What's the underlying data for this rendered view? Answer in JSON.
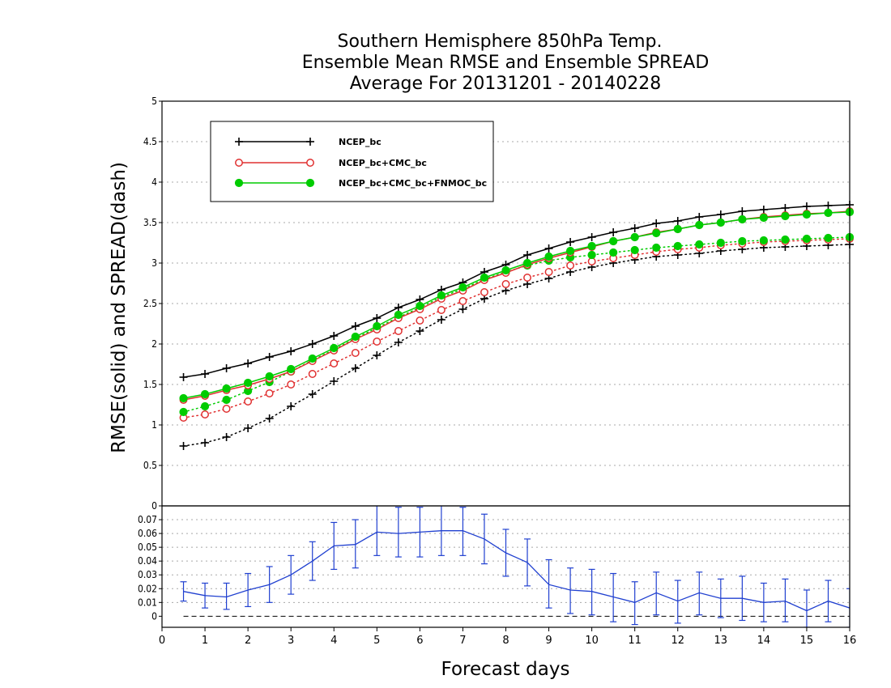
{
  "chart_data": [
    {
      "type": "line",
      "title_lines": [
        "Southern Hemisphere 850hPa Temp.",
        "Ensemble Mean RMSE and Ensemble SPREAD",
        "Average For 20131201 - 20140228"
      ],
      "ylabel": "RMSE(solid) and SPREAD(dash)",
      "ylim": [
        0,
        5
      ],
      "yticks": [
        0,
        0.5,
        1,
        1.5,
        2,
        2.5,
        3,
        3.5,
        4,
        4.5,
        5
      ],
      "ytick_labels": [
        "0",
        "0.5",
        "1",
        "1.5",
        "2",
        "2.5",
        "3",
        "3.5",
        "4",
        "4.5",
        "5"
      ],
      "xlim": [
        0,
        16
      ],
      "grid": true,
      "legend_position": "top-left",
      "x": [
        0.5,
        1,
        1.5,
        2,
        2.5,
        3,
        3.5,
        4,
        4.5,
        5,
        5.5,
        6,
        6.5,
        7,
        7.5,
        8,
        8.5,
        9,
        9.5,
        10,
        10.5,
        11,
        11.5,
        12,
        12.5,
        13,
        13.5,
        14,
        14.5,
        15,
        15.5,
        16
      ],
      "series": [
        {
          "name": "NCEP_bc",
          "color": "#000000",
          "marker": "plus",
          "style": "solid",
          "values": [
            1.59,
            1.63,
            1.7,
            1.76,
            1.84,
            1.91,
            2.0,
            2.1,
            2.22,
            2.32,
            2.45,
            2.55,
            2.67,
            2.76,
            2.89,
            2.98,
            3.1,
            3.18,
            3.26,
            3.32,
            3.38,
            3.43,
            3.49,
            3.52,
            3.57,
            3.6,
            3.64,
            3.66,
            3.68,
            3.7,
            3.71,
            3.72
          ]
        },
        {
          "name": "NCEP_bc+CMC_bc",
          "color": "#e03030",
          "marker": "circle-open",
          "style": "solid",
          "values": [
            1.31,
            1.36,
            1.43,
            1.49,
            1.57,
            1.66,
            1.79,
            1.92,
            2.06,
            2.18,
            2.32,
            2.43,
            2.56,
            2.66,
            2.79,
            2.88,
            2.98,
            3.06,
            3.13,
            3.2,
            3.27,
            3.32,
            3.38,
            3.42,
            3.47,
            3.5,
            3.54,
            3.57,
            3.59,
            3.61,
            3.62,
            3.64
          ]
        },
        {
          "name": "NCEP_bc+CMC_bc+FNMOC_bc",
          "color": "#00cc00",
          "marker": "circle-filled",
          "style": "solid",
          "values": [
            1.33,
            1.38,
            1.45,
            1.52,
            1.6,
            1.69,
            1.82,
            1.95,
            2.09,
            2.22,
            2.36,
            2.47,
            2.6,
            2.7,
            2.82,
            2.91,
            3.0,
            3.08,
            3.15,
            3.21,
            3.27,
            3.32,
            3.37,
            3.42,
            3.47,
            3.5,
            3.54,
            3.56,
            3.58,
            3.6,
            3.62,
            3.63
          ]
        },
        {
          "name": "NCEP_bc spread",
          "color": "#000000",
          "marker": "plus",
          "style": "dotted",
          "values": [
            0.74,
            0.78,
            0.85,
            0.96,
            1.08,
            1.23,
            1.38,
            1.54,
            1.7,
            1.86,
            2.02,
            2.16,
            2.3,
            2.43,
            2.56,
            2.66,
            2.74,
            2.81,
            2.89,
            2.95,
            3.0,
            3.04,
            3.08,
            3.1,
            3.12,
            3.15,
            3.17,
            3.19,
            3.2,
            3.21,
            3.22,
            3.23
          ]
        },
        {
          "name": "NCEP_bc+CMC_bc spread",
          "color": "#e03030",
          "marker": "circle-open",
          "style": "dotted",
          "values": [
            1.09,
            1.13,
            1.2,
            1.29,
            1.39,
            1.5,
            1.63,
            1.76,
            1.89,
            2.03,
            2.16,
            2.29,
            2.42,
            2.53,
            2.64,
            2.74,
            2.82,
            2.89,
            2.97,
            3.02,
            3.06,
            3.1,
            3.14,
            3.17,
            3.19,
            3.22,
            3.24,
            3.26,
            3.27,
            3.28,
            3.29,
            3.3
          ]
        },
        {
          "name": "NCEP_bc+CMC_bc+FNMOC_bc spread",
          "color": "#00cc00",
          "marker": "circle-filled",
          "style": "dotted",
          "values": [
            1.16,
            1.23,
            1.31,
            1.42,
            1.53,
            1.66,
            1.8,
            1.93,
            2.07,
            2.2,
            2.33,
            2.45,
            2.58,
            2.68,
            2.8,
            2.89,
            2.97,
            3.03,
            3.07,
            3.1,
            3.13,
            3.16,
            3.19,
            3.21,
            3.23,
            3.25,
            3.27,
            3.28,
            3.29,
            3.3,
            3.31,
            3.32
          ]
        }
      ],
      "legend": [
        {
          "label": "NCEP_bc",
          "color": "#000000",
          "marker": "plus"
        },
        {
          "label": "NCEP_bc+CMC_bc",
          "color": "#e03030",
          "marker": "circle-open"
        },
        {
          "label": "NCEP_bc+CMC_bc+FNMOC_bc",
          "color": "#00cc00",
          "marker": "circle-filled"
        }
      ]
    },
    {
      "type": "line",
      "xlabel": "Forecast days",
      "xlim": [
        0,
        16
      ],
      "xticks": [
        0,
        1,
        2,
        3,
        4,
        5,
        6,
        7,
        8,
        9,
        10,
        11,
        12,
        13,
        14,
        15,
        16
      ],
      "xtick_labels": [
        "0",
        "1",
        "2",
        "3",
        "4",
        "5",
        "6",
        "7",
        "8",
        "9",
        "10",
        "11",
        "12",
        "13",
        "14",
        "15",
        "16"
      ],
      "ylim": [
        -0.008,
        0.08
      ],
      "yticks": [
        0,
        0.01,
        0.02,
        0.03,
        0.04,
        0.05,
        0.06,
        0.07
      ],
      "ytick_labels": [
        "0",
        "0.01",
        "0.02",
        "0.03",
        "0.04",
        "0.05",
        "0.06",
        "0.07"
      ],
      "zero_line": true,
      "x": [
        0.5,
        1,
        1.5,
        2,
        2.5,
        3,
        3.5,
        4,
        4.5,
        5,
        5.5,
        6,
        6.5,
        7,
        7.5,
        8,
        8.5,
        9,
        9.5,
        10,
        10.5,
        11,
        11.5,
        12,
        12.5,
        13,
        13.5,
        14,
        14.5,
        15,
        15.5,
        16
      ],
      "series": [
        {
          "color": "#2040d0",
          "style": "solid",
          "errorbars": true,
          "values": [
            0.018,
            0.015,
            0.014,
            0.019,
            0.023,
            0.03,
            0.04,
            0.051,
            0.052,
            0.061,
            0.06,
            0.061,
            0.062,
            0.062,
            0.056,
            0.046,
            0.039,
            0.023,
            0.019,
            0.018,
            0.014,
            0.01,
            0.017,
            0.011,
            0.017,
            0.013,
            0.013,
            0.01,
            0.011,
            0.004,
            0.011,
            0.006
          ],
          "lower": [
            0.011,
            0.006,
            0.005,
            0.007,
            0.01,
            0.016,
            0.026,
            0.034,
            0.035,
            0.044,
            0.043,
            0.043,
            0.044,
            0.044,
            0.038,
            0.029,
            0.022,
            0.006,
            0.002,
            0.001,
            -0.004,
            -0.006,
            0.001,
            -0.005,
            0.001,
            -0.001,
            -0.003,
            -0.004,
            -0.004,
            -0.008,
            -0.004,
            -0.008
          ],
          "upper": [
            0.025,
            0.024,
            0.024,
            0.031,
            0.036,
            0.044,
            0.054,
            0.068,
            0.07,
            0.081,
            0.079,
            0.079,
            0.081,
            0.079,
            0.074,
            0.063,
            0.056,
            0.041,
            0.035,
            0.034,
            0.031,
            0.025,
            0.032,
            0.026,
            0.032,
            0.027,
            0.029,
            0.024,
            0.027,
            0.019,
            0.026,
            0.02
          ]
        }
      ]
    }
  ]
}
